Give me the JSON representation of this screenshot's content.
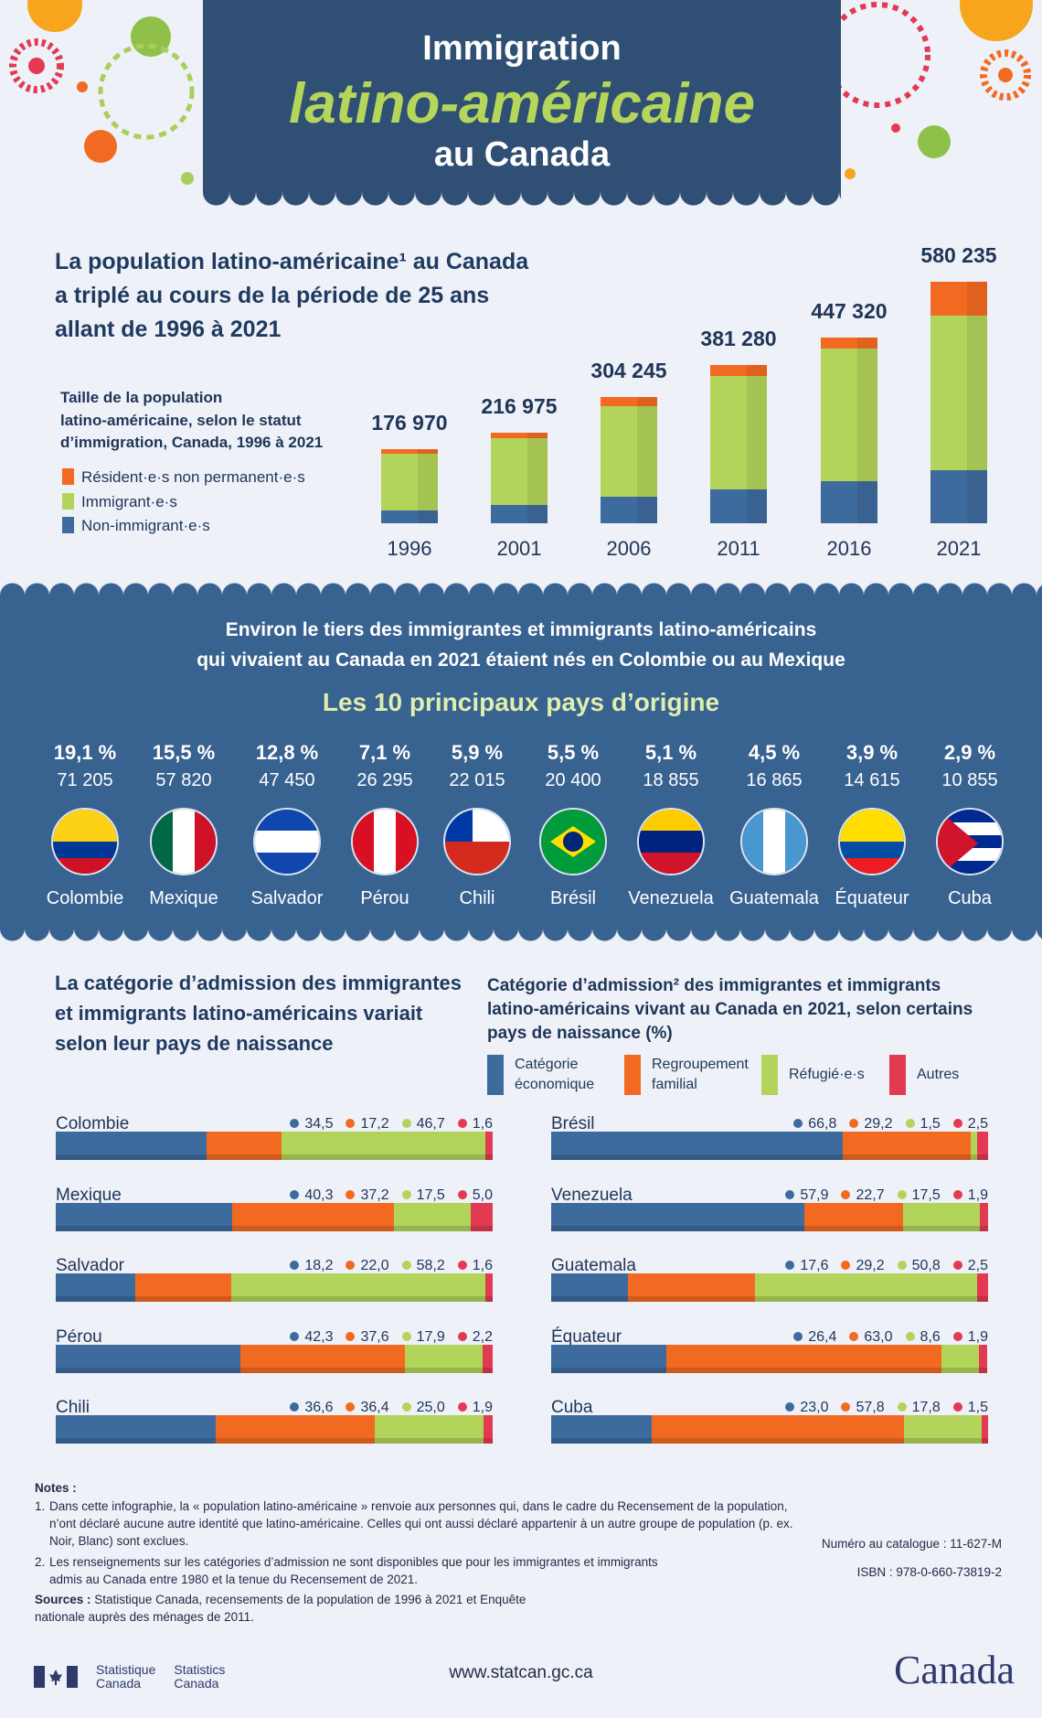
{
  "header": {
    "line1": "Immigration",
    "line2": "latino-américaine",
    "line3": "au Canada"
  },
  "section1": {
    "title_lines": [
      "La population latino-américaine¹ au Canada",
      "a triplé au cours de la période de 25 ans",
      "allant de 1996 à 2021"
    ],
    "chart_title_lines": [
      "Taille de la population",
      "latino-américaine, selon le statut",
      "d’immigration, Canada, 1996 à 2021"
    ]
  },
  "chart_data": [
    {
      "type": "bar",
      "stacked": true,
      "categories": [
        "1996",
        "2001",
        "2006",
        "2011",
        "2016",
        "2021"
      ],
      "totals": [
        176970,
        216975,
        304245,
        381280,
        447320,
        580235
      ],
      "total_labels": [
        "176 970",
        "216 975",
        "304 245",
        "381 280",
        "447 320",
        "580 235"
      ],
      "series": [
        {
          "name": "Non-immigrant·e·s",
          "color": "#3e6b9d",
          "values": [
            31000,
            44000,
            64000,
            81000,
            102000,
            127000
          ]
        },
        {
          "name": "Immigrant·e·s",
          "color": "#b2d45b",
          "values": [
            135000,
            160000,
            217000,
            272000,
            317000,
            372000
          ]
        },
        {
          "name": "Résident·e·s non permanent·e·s",
          "color": "#f26a21",
          "values": [
            11000,
            13000,
            23000,
            28000,
            28000,
            81000
          ]
        }
      ],
      "legend_order": [
        "Résident·e·s non permanent·e·s",
        "Immigrant·e·s",
        "Non-immigrant·e·s"
      ],
      "legend": "left"
    },
    {
      "type": "bar",
      "stacked": true,
      "orientation": "horizontal",
      "unit": "%",
      "series": [
        {
          "name": "Catégorie économique",
          "color": "#3e6b9d"
        },
        {
          "name": "Regroupement familial",
          "color": "#f26a21"
        },
        {
          "name": "Réfugié·e·s",
          "color": "#b2d45b"
        },
        {
          "name": "Autres",
          "color": "#e23a52"
        }
      ],
      "rows": [
        {
          "country": "Colombie",
          "values": [
            34.5,
            17.2,
            46.7,
            1.6
          ],
          "labels": [
            "34,5",
            "17,2",
            "46,7",
            "1,6"
          ]
        },
        {
          "country": "Mexique",
          "values": [
            40.3,
            37.2,
            17.5,
            5.0
          ],
          "labels": [
            "40,3",
            "37,2",
            "17,5",
            "5,0"
          ]
        },
        {
          "country": "Salvador",
          "values": [
            18.2,
            22.0,
            58.2,
            1.6
          ],
          "labels": [
            "18,2",
            "22,0",
            "58,2",
            "1,6"
          ]
        },
        {
          "country": "Pérou",
          "values": [
            42.3,
            37.6,
            17.9,
            2.2
          ],
          "labels": [
            "42,3",
            "37,6",
            "17,9",
            "2,2"
          ]
        },
        {
          "country": "Chili",
          "values": [
            36.6,
            36.4,
            25.0,
            1.9
          ],
          "labels": [
            "36,6",
            "36,4",
            "25,0",
            "1,9"
          ]
        },
        {
          "country": "Brésil",
          "values": [
            66.8,
            29.2,
            1.5,
            2.5
          ],
          "labels": [
            "66,8",
            "29,2",
            "1,5",
            "2,5"
          ]
        },
        {
          "country": "Venezuela",
          "values": [
            57.9,
            22.7,
            17.5,
            1.9
          ],
          "labels": [
            "57,9",
            "22,7",
            "17,5",
            "1,9"
          ]
        },
        {
          "country": "Guatemala",
          "values": [
            17.6,
            29.2,
            50.8,
            2.5
          ],
          "labels": [
            "17,6",
            "29,2",
            "50,8",
            "2,5"
          ]
        },
        {
          "country": "Équateur",
          "values": [
            26.4,
            63.0,
            8.6,
            1.9
          ],
          "labels": [
            "26,4",
            "63,0",
            "8,6",
            "1,9"
          ]
        },
        {
          "country": "Cuba",
          "values": [
            23.0,
            57.8,
            17.8,
            1.5
          ],
          "labels": [
            "23,0",
            "57,8",
            "17,8",
            "1,5"
          ]
        }
      ]
    }
  ],
  "section2": {
    "headline_lines": [
      "Environ le tiers des immigrantes et immigrants latino-américains",
      "qui vivaient au Canada en 2021 étaient nés en Colombie ou au Mexique"
    ],
    "subtitle": "Les 10 principaux pays d’origine",
    "countries": [
      {
        "pct": "19,1 %",
        "count": "71 205",
        "name": "Colombie",
        "flag": {
          "dir": "h",
          "colors": [
            "#fcd116",
            "#fcd116",
            "#003893",
            "#ce1126"
          ]
        }
      },
      {
        "pct": "15,5 %",
        "count": "57 820",
        "name": "Mexique",
        "flag": {
          "dir": "v",
          "colors": [
            "#006847",
            "#ffffff",
            "#ce1126"
          ]
        }
      },
      {
        "pct": "12,8 %",
        "count": "47 450",
        "name": "Salvador",
        "flag": {
          "dir": "h",
          "colors": [
            "#0f47af",
            "#ffffff",
            "#0f47af"
          ]
        }
      },
      {
        "pct": "7,1 %",
        "count": "26 295",
        "name": "Pérou",
        "flag": {
          "dir": "v",
          "colors": [
            "#d91023",
            "#ffffff",
            "#d91023"
          ]
        }
      },
      {
        "pct": "5,9 %",
        "count": "22 015",
        "name": "Chili",
        "flag": {
          "dir": "h",
          "colors": [
            "#ffffff",
            "#d52b1e"
          ]
        }
      },
      {
        "pct": "5,5 %",
        "count": "20 400",
        "name": "Brésil",
        "flag": {
          "dir": "h",
          "colors": [
            "#009c3b"
          ]
        }
      },
      {
        "pct": "5,1 %",
        "count": "18 855",
        "name": "Venezuela",
        "flag": {
          "dir": "h",
          "colors": [
            "#ffcc00",
            "#00247d",
            "#cf142b"
          ]
        }
      },
      {
        "pct": "4,5 %",
        "count": "16 865",
        "name": "Guatemala",
        "flag": {
          "dir": "v",
          "colors": [
            "#4997d0",
            "#ffffff",
            "#4997d0"
          ]
        }
      },
      {
        "pct": "3,9 %",
        "count": "14 615",
        "name": "Équateur",
        "flag": {
          "dir": "h",
          "colors": [
            "#ffdd00",
            "#ffdd00",
            "#034ea2",
            "#ed1c24"
          ]
        }
      },
      {
        "pct": "2,9 %",
        "count": "10 855",
        "name": "Cuba",
        "flag": {
          "dir": "h",
          "colors": [
            "#002a8f",
            "#ffffff",
            "#002a8f",
            "#ffffff",
            "#002a8f"
          ]
        }
      }
    ]
  },
  "section3": {
    "title_lines": [
      "La catégorie d’admission des immigrantes",
      "et immigrants latino-américains variait",
      "selon leur pays de naissance"
    ],
    "chart_title_lines": [
      "Catégorie d’admission² des immigrantes et immigrants",
      "latino-américains vivant au Canada en 2021, selon certains",
      "pays de naissance (%)"
    ],
    "legend": [
      [
        "Catégorie",
        "économique"
      ],
      [
        "Regroupement",
        "familial"
      ],
      [
        "Réfugié·e·s",
        ""
      ],
      [
        "Autres",
        ""
      ]
    ]
  },
  "notes": {
    "heading": "Notes :",
    "items": [
      [
        "1.",
        "Dans cette infographie, la « population latino-américaine » renvoie aux personnes qui, dans le cadre du Recensement de la population, n’ont déclaré aucune autre identité que latino-américaine. Celles qui ont aussi déclaré appartenir à un autre groupe de population (p. ex. Noir, Blanc) sont exclues."
      ],
      [
        "2.",
        "Les renseignements sur les catégories d’admission ne sont disponibles que pour les immigrantes et immigrants admis au Canada entre 1980 et la tenue du Recensement de 2021."
      ]
    ],
    "sources_label": "Sources :",
    "sources_text": "Statistique Canada, recensements de la population de 1996 à 2021 et Enquête nationale auprès des ménages de 2011.",
    "catalogue": "Numéro au catalogue : 11-627-M",
    "isbn": "ISBN : 978-0-660-73819-2"
  },
  "footer": {
    "statcan_fr": [
      "Statistique",
      "Canada"
    ],
    "statcan_en": [
      "Statistics",
      "Canada"
    ],
    "url": "www.statcan.gc.ca",
    "wordmark": "Canada"
  }
}
